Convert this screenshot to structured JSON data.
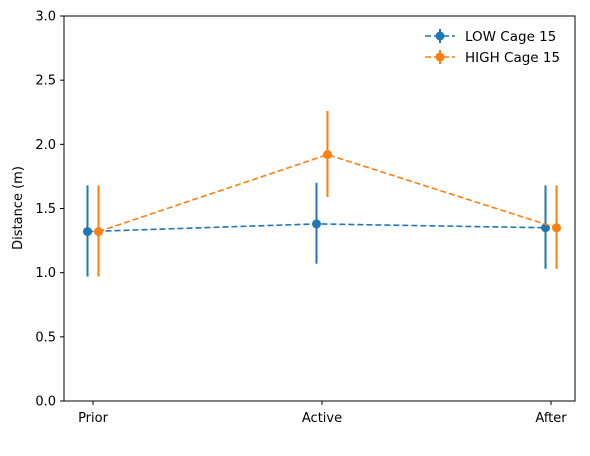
{
  "chart_data": {
    "type": "line",
    "title": "",
    "xlabel": "",
    "ylabel": "Distance (m)",
    "categories": [
      "Prior",
      "Active",
      "After"
    ],
    "ylim": [
      0.0,
      3.0
    ],
    "yticks": [
      0.0,
      0.5,
      1.0,
      1.5,
      2.0,
      2.5,
      3.0
    ],
    "ytick_labels": [
      "0.0",
      "0.5",
      "1.0",
      "1.5",
      "2.0",
      "2.5",
      "3.0"
    ],
    "grid": false,
    "legend_position": "top-right",
    "series": [
      {
        "name": "LOW Cage 15",
        "color": "#1f77b4",
        "linestyle": "dashed",
        "marker": "circle",
        "values": [
          1.32,
          1.38,
          1.35
        ],
        "error_low": [
          0.97,
          1.07,
          1.03
        ],
        "error_high": [
          1.68,
          1.7,
          1.68
        ]
      },
      {
        "name": "HIGH Cage 15",
        "color": "#ff7f0e",
        "linestyle": "dashed",
        "marker": "circle",
        "values": [
          1.32,
          1.92,
          1.35
        ],
        "error_low": [
          0.97,
          1.59,
          1.03
        ],
        "error_high": [
          1.68,
          2.26,
          1.68
        ]
      }
    ]
  }
}
